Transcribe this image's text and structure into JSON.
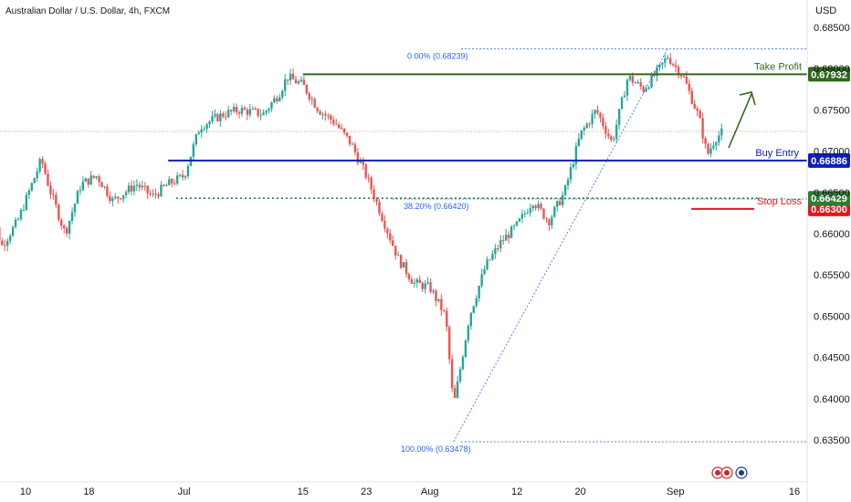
{
  "chart_data": {
    "type": "candlestick",
    "title": "Australian Dollar / U.S. Dollar, 4h, FXCM",
    "currency_label": "USD",
    "ylim": [
      0.633,
      0.687
    ],
    "price_ticks": [
      "0.68500",
      "0.68000",
      "0.67500",
      "0.67000",
      "0.66500",
      "0.66000",
      "0.65500",
      "0.65000",
      "0.64500",
      "0.64000",
      "0.63500"
    ],
    "time_ticks": [
      {
        "label": "10",
        "day": 10
      },
      {
        "label": "18",
        "day": 18
      },
      {
        "label": "Jul",
        "day": 30
      },
      {
        "label": "15",
        "day": 45
      },
      {
        "label": "23",
        "day": 53
      },
      {
        "label": "Aug",
        "day": 61
      },
      {
        "label": "12",
        "day": 72
      },
      {
        "label": "20",
        "day": 80
      },
      {
        "label": "Sep",
        "day": 92
      },
      {
        "label": "16",
        "day": 107
      }
    ],
    "levels": [
      {
        "name": "Take Profit",
        "price": 0.67932,
        "badge": "0.67932",
        "color": "#33691e",
        "style": "solid",
        "x_start_day": 45
      },
      {
        "name": "Buy Entry",
        "price": 0.66886,
        "badge": "0.66886",
        "color": "#0d20b8",
        "style": "solid",
        "x_start_day": 28
      },
      {
        "name": "Stop Loss",
        "price": 0.663,
        "badge": "0.66300",
        "color": "#e8141c",
        "style": "solid",
        "x_start_day": 94
      },
      {
        "name": "",
        "price": 0.66429,
        "badge": "0.66429",
        "color": "#2f7d32",
        "style": "dotted",
        "x_start_day": 29
      }
    ],
    "fibonacci": [
      {
        "label": "0.00% (0.68239)",
        "price": 0.68239
      },
      {
        "label": "38.20% (0.66420)",
        "price": 0.6642
      },
      {
        "label": "100.00% (0.63478)",
        "price": 0.63478
      }
    ],
    "last_price": 0.6724,
    "ohlc_anchor_path": [
      {
        "day": 5,
        "price": 0.665
      },
      {
        "day": 7,
        "price": 0.6585
      },
      {
        "day": 9,
        "price": 0.6615
      },
      {
        "day": 12,
        "price": 0.669
      },
      {
        "day": 13,
        "price": 0.6655
      },
      {
        "day": 15,
        "price": 0.66
      },
      {
        "day": 17,
        "price": 0.666
      },
      {
        "day": 19,
        "price": 0.667
      },
      {
        "day": 21,
        "price": 0.664
      },
      {
        "day": 24,
        "price": 0.666
      },
      {
        "day": 26,
        "price": 0.6645
      },
      {
        "day": 28,
        "price": 0.666
      },
      {
        "day": 30,
        "price": 0.667
      },
      {
        "day": 32,
        "price": 0.673
      },
      {
        "day": 35,
        "price": 0.6745
      },
      {
        "day": 37,
        "price": 0.675
      },
      {
        "day": 40,
        "price": 0.6745
      },
      {
        "day": 42,
        "price": 0.677
      },
      {
        "day": 43,
        "price": 0.679
      },
      {
        "day": 45,
        "price": 0.678
      },
      {
        "day": 47,
        "price": 0.675
      },
      {
        "day": 49,
        "price": 0.6735
      },
      {
        "day": 51,
        "price": 0.671
      },
      {
        "day": 53,
        "price": 0.667
      },
      {
        "day": 55,
        "price": 0.662
      },
      {
        "day": 57,
        "price": 0.657
      },
      {
        "day": 59,
        "price": 0.654
      },
      {
        "day": 61,
        "price": 0.6535
      },
      {
        "day": 63,
        "price": 0.65
      },
      {
        "day": 64,
        "price": 0.639
      },
      {
        "day": 66,
        "price": 0.65
      },
      {
        "day": 68,
        "price": 0.656
      },
      {
        "day": 70,
        "price": 0.659
      },
      {
        "day": 72,
        "price": 0.661
      },
      {
        "day": 74,
        "price": 0.664
      },
      {
        "day": 76,
        "price": 0.6615
      },
      {
        "day": 78,
        "price": 0.665
      },
      {
        "day": 80,
        "price": 0.672
      },
      {
        "day": 82,
        "price": 0.675
      },
      {
        "day": 84,
        "price": 0.671
      },
      {
        "day": 86,
        "price": 0.679
      },
      {
        "day": 88,
        "price": 0.6775
      },
      {
        "day": 90,
        "price": 0.68
      },
      {
        "day": 91,
        "price": 0.6815
      },
      {
        "day": 93,
        "price": 0.679
      },
      {
        "day": 95,
        "price": 0.674
      },
      {
        "day": 96,
        "price": 0.6695
      },
      {
        "day": 97,
        "price": 0.6715
      },
      {
        "day": 98,
        "price": 0.6724
      }
    ]
  }
}
